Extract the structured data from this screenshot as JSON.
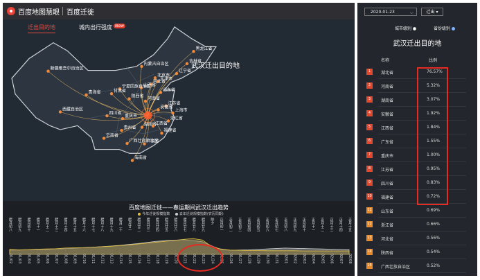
{
  "header": {
    "brand": "百度地图慧眼",
    "product": "百度迁徙"
  },
  "map": {
    "tabs": [
      {
        "label": "迁出目的地",
        "active": true
      },
      {
        "label": "城内出行强度",
        "active": false,
        "badge": "New"
      }
    ],
    "title": "武汉迁出目的地",
    "origin": "湖北省",
    "cities": [
      {
        "name": "黑龙江省",
        "lon": 127.5,
        "lat": 46.8
      },
      {
        "name": "吉林省",
        "lon": 125.6,
        "lat": 43.7
      },
      {
        "name": "辽宁省",
        "lon": 122.6,
        "lat": 41.2
      },
      {
        "name": "内蒙古自治区",
        "lon": 112.5,
        "lat": 43.0
      },
      {
        "name": "北京市",
        "lon": 116.4,
        "lat": 40.1
      },
      {
        "name": "天津市",
        "lon": 117.2,
        "lat": 39.2
      },
      {
        "name": "河北省",
        "lon": 115.2,
        "lat": 38.5
      },
      {
        "name": "山西省",
        "lon": 112.4,
        "lat": 37.6
      },
      {
        "name": "山东省",
        "lon": 118.0,
        "lat": 36.4
      },
      {
        "name": "河南省",
        "lon": 113.6,
        "lat": 34.2
      },
      {
        "name": "陕西省",
        "lon": 108.9,
        "lat": 34.8
      },
      {
        "name": "宁夏回族自治区",
        "lon": 106.2,
        "lat": 37.3
      },
      {
        "name": "甘肃省",
        "lon": 103.8,
        "lat": 36.1
      },
      {
        "name": "青海省",
        "lon": 96.5,
        "lat": 35.8
      },
      {
        "name": "新疆维吾尔自治区",
        "lon": 85.5,
        "lat": 41.8
      },
      {
        "name": "西藏自治区",
        "lon": 89.0,
        "lat": 31.5
      },
      {
        "name": "四川省",
        "lon": 102.5,
        "lat": 30.5
      },
      {
        "name": "重庆市",
        "lon": 107.0,
        "lat": 29.8
      },
      {
        "name": "贵州省",
        "lon": 106.7,
        "lat": 26.8
      },
      {
        "name": "云南省",
        "lon": 101.6,
        "lat": 24.8
      },
      {
        "name": "广西壮族自治区",
        "lon": 108.3,
        "lat": 23.5
      },
      {
        "name": "广东省",
        "lon": 113.3,
        "lat": 23.4
      },
      {
        "name": "海南省",
        "lon": 109.8,
        "lat": 19.2
      },
      {
        "name": "湖南省",
        "lon": 112.6,
        "lat": 27.6
      },
      {
        "name": "江西省",
        "lon": 115.8,
        "lat": 27.9
      },
      {
        "name": "福建省",
        "lon": 118.3,
        "lat": 26.1
      },
      {
        "name": "浙江省",
        "lon": 120.2,
        "lat": 29.2
      },
      {
        "name": "上海市",
        "lon": 121.5,
        "lat": 31.2
      },
      {
        "name": "江苏省",
        "lon": 119.5,
        "lat": 33.0
      },
      {
        "name": "安徽省",
        "lon": 117.3,
        "lat": 32.0
      }
    ]
  },
  "trend": {
    "title": "百度地图迁徙——春运期间武汉迁出趋势",
    "legend": [
      {
        "label": "今年迁徙规模指数",
        "color": "#e3c040"
      },
      {
        "label": "去年迁徙规模指数(农历同期)",
        "color": "#cfcfcf"
      }
    ],
    "lunar_labels": [
      "腊月初八",
      "腊月初九",
      "腊月初十",
      "腊月十一",
      "腊月十二",
      "腊月十三",
      "腊月十四",
      "腊月十五",
      "腊月十六",
      "腊月十七",
      "腊月十八",
      "腊月十九",
      "腊月二十",
      "腊月廿一",
      "腊月廿二",
      "腊月廿三",
      "腊月廿四",
      "腊月廿五",
      "腊月廿六",
      "腊月廿七",
      "腊月廿八",
      "腊月廿九",
      "除夕",
      "正月初一",
      "正月初二",
      "正月初三",
      "正月初四",
      "正月初五",
      "正月初六",
      "正月初七",
      "正月初八",
      "正月初九",
      "正月初十",
      "正月十一",
      "正月十二",
      "正月十三",
      "正月十四",
      "正月十五"
    ],
    "dates": [
      "01/02",
      "01/03",
      "01/04",
      "01/05",
      "01/06",
      "01/07",
      "01/08",
      "01/09",
      "01/10",
      "01/11",
      "01/12",
      "01/13",
      "01/14",
      "01/15",
      "01/16",
      "01/17",
      "01/18",
      "01/19",
      "01/20",
      "01/21",
      "01/22",
      "01/23",
      "01/24",
      "01/25",
      "01/26",
      "01/27",
      "01/28",
      "01/29",
      "01/30",
      "01/31",
      "02/01",
      "02/02",
      "02/03",
      "02/04",
      "02/05",
      "02/06",
      "02/07",
      "02/08"
    ],
    "this_year": [
      2.2,
      2.0,
      2.1,
      2.3,
      2.4,
      2.5,
      2.8,
      2.9,
      3.0,
      3.2,
      3.4,
      3.6,
      3.9,
      4.2,
      4.6,
      5.0,
      5.4,
      5.8,
      6.2,
      6.7,
      7.0,
      6.4,
      3.5,
      2.4,
      1.9,
      1.8,
      1.7,
      1.7,
      1.6,
      1.6,
      1.6,
      1.6,
      1.5,
      1.5,
      1.5,
      1.5,
      1.5,
      1.5
    ],
    "last_year": [
      1.9,
      1.9,
      2.0,
      2.1,
      2.2,
      2.4,
      2.5,
      2.7,
      2.9,
      3.1,
      3.4,
      3.7,
      4.0,
      4.4,
      4.8,
      5.3,
      5.8,
      6.1,
      6.3,
      6.5,
      6.1,
      5.6,
      3.8,
      2.2,
      1.8,
      1.9,
      2.0,
      2.2,
      2.4,
      2.6,
      2.8,
      2.7,
      2.6,
      2.5,
      2.4,
      2.3,
      2.2,
      2.1
    ],
    "ylim": [
      0,
      8
    ]
  },
  "panel": {
    "date": "2020-01-23",
    "direction": "迁出",
    "levels": [
      {
        "label": "城市级别",
        "selected": false
      },
      {
        "label": "省份级别",
        "selected": true
      }
    ],
    "title": "武汉迁出目的地",
    "columns": {
      "name": "名称",
      "ratio": "比例"
    },
    "rows": [
      {
        "rank": "1",
        "name": "湖北省",
        "ratio": "76.57%"
      },
      {
        "rank": "2",
        "name": "河南省",
        "ratio": "5.32%"
      },
      {
        "rank": "3",
        "name": "湖南省",
        "ratio": "3.07%"
      },
      {
        "rank": "4",
        "name": "安徽省",
        "ratio": "1.92%"
      },
      {
        "rank": "5",
        "name": "江西省",
        "ratio": "1.84%"
      },
      {
        "rank": "6",
        "name": "广东省",
        "ratio": "1.55%"
      },
      {
        "rank": "7",
        "name": "重庆市",
        "ratio": "1.00%"
      },
      {
        "rank": "8",
        "name": "江苏省",
        "ratio": "0.95%"
      },
      {
        "rank": "9",
        "name": "四川省",
        "ratio": "0.83%"
      },
      {
        "rank": "10",
        "name": "福建省",
        "ratio": "0.72%"
      },
      {
        "rank": "11",
        "name": "山东省",
        "ratio": "0.69%"
      },
      {
        "rank": "12",
        "name": "浙江省",
        "ratio": "0.66%"
      },
      {
        "rank": "13",
        "name": "河北省",
        "ratio": "0.56%"
      },
      {
        "rank": "14",
        "name": "陕西省",
        "ratio": "0.54%"
      },
      {
        "rank": "15",
        "name": "广西壮族自治区",
        "ratio": "0.52%"
      }
    ],
    "rank_colors": {
      "top": "#e0492f",
      "rest": "#e8892c"
    }
  }
}
